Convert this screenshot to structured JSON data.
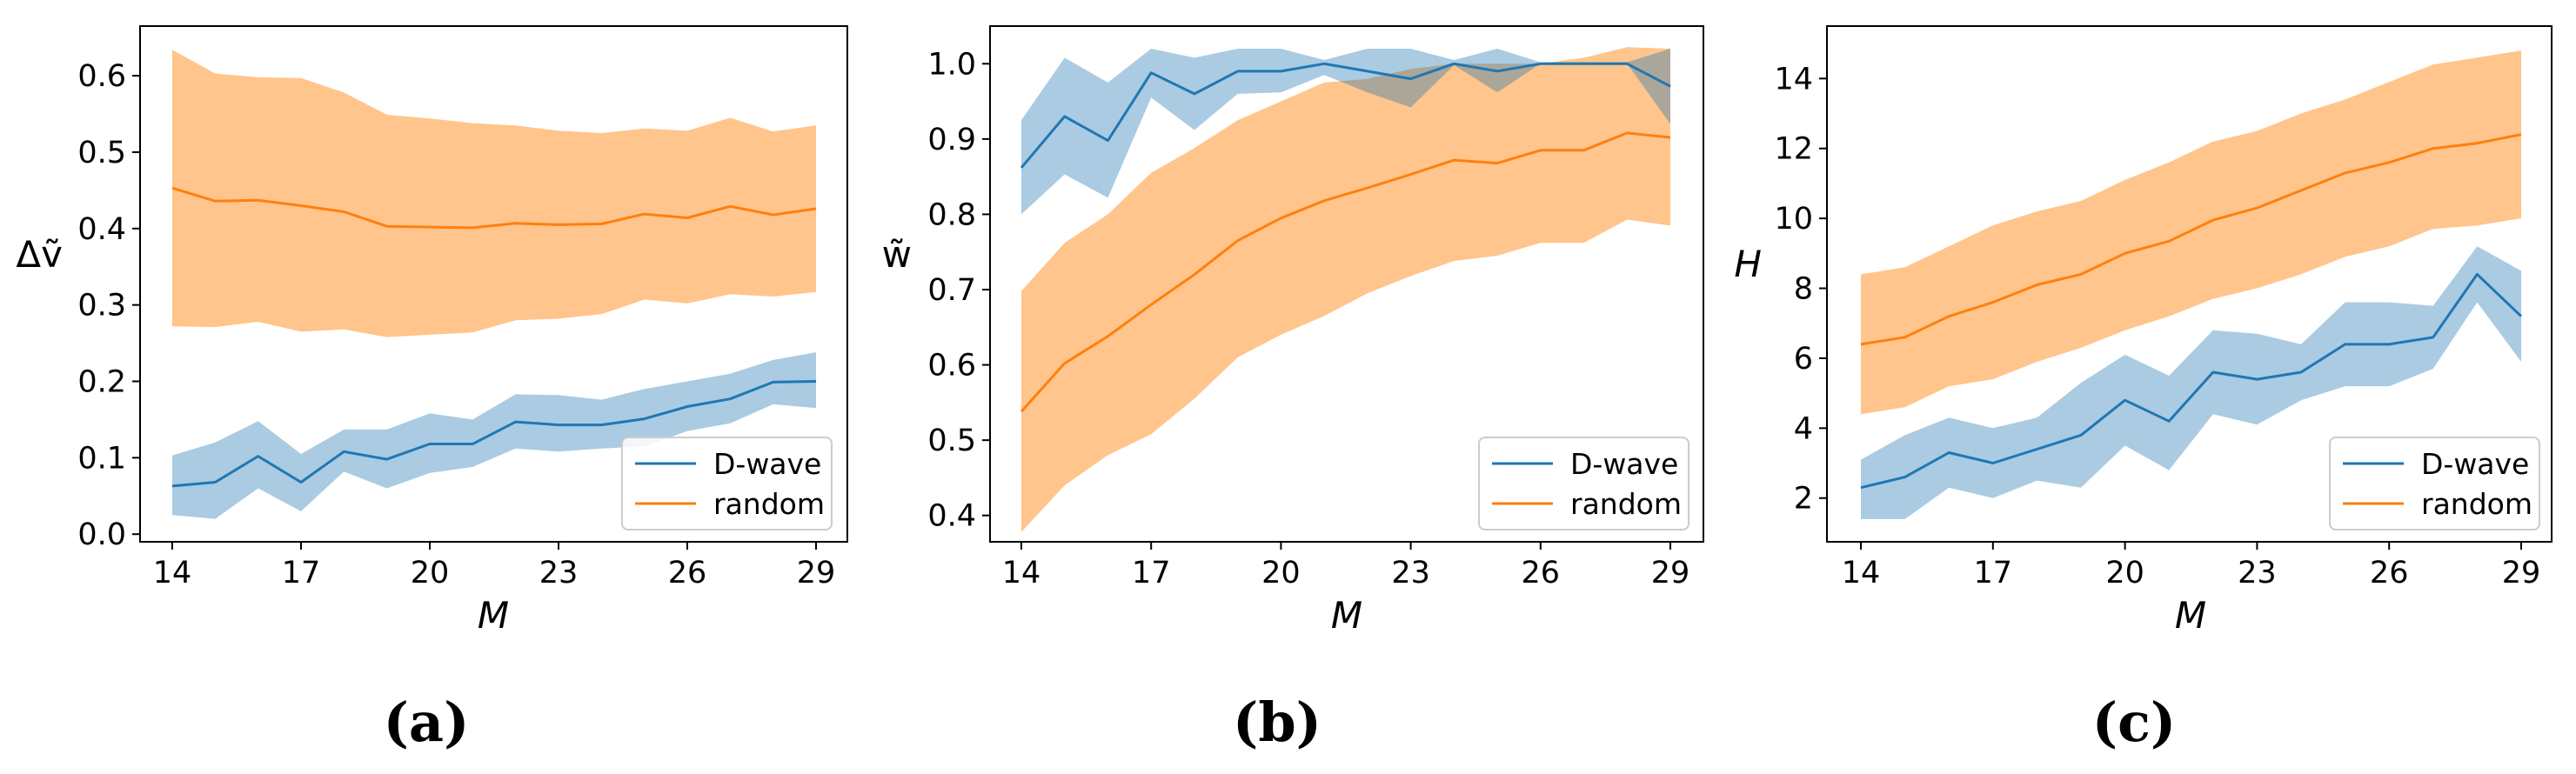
{
  "chart_data": [
    {
      "type": "line",
      "panel": "(a)",
      "xlabel": "M",
      "ylabel": "Δṽ",
      "xlim": [
        14,
        29
      ],
      "ylim": [
        -0.01,
        0.665
      ],
      "xticks": [
        14,
        17,
        20,
        23,
        26,
        29
      ],
      "yticks": [
        0.0,
        0.1,
        0.2,
        0.3,
        0.4,
        0.5,
        0.6
      ],
      "ytick_labels": [
        "0.0",
        "0.1",
        "0.2",
        "0.3",
        "0.4",
        "0.5",
        "0.6"
      ],
      "legend_position": "lower-right",
      "x": [
        14,
        15,
        16,
        17,
        18,
        19,
        20,
        21,
        22,
        23,
        24,
        25,
        26,
        27,
        28,
        29
      ],
      "series": [
        {
          "name": "D-wave",
          "color": "#1f77b4",
          "band_color": "#1f77b4",
          "values": [
            0.063,
            0.068,
            0.102,
            0.068,
            0.108,
            0.098,
            0.118,
            0.118,
            0.147,
            0.143,
            0.143,
            0.151,
            0.167,
            0.177,
            0.199,
            0.2
          ],
          "lower": [
            0.025,
            0.02,
            0.06,
            0.03,
            0.082,
            0.06,
            0.08,
            0.088,
            0.112,
            0.108,
            0.112,
            0.115,
            0.135,
            0.145,
            0.17,
            0.165
          ],
          "upper": [
            0.103,
            0.12,
            0.148,
            0.105,
            0.137,
            0.137,
            0.158,
            0.15,
            0.183,
            0.182,
            0.176,
            0.19,
            0.2,
            0.21,
            0.228,
            0.238
          ]
        },
        {
          "name": "random",
          "color": "#ff7f0e",
          "band_color": "#ffbb78",
          "values": [
            0.453,
            0.436,
            0.437,
            0.43,
            0.422,
            0.403,
            0.402,
            0.401,
            0.407,
            0.405,
            0.406,
            0.419,
            0.414,
            0.429,
            0.418,
            0.426
          ],
          "lower": [
            0.272,
            0.271,
            0.278,
            0.265,
            0.268,
            0.258,
            0.261,
            0.264,
            0.28,
            0.282,
            0.288,
            0.307,
            0.302,
            0.314,
            0.311,
            0.317
          ],
          "upper": [
            0.634,
            0.603,
            0.598,
            0.597,
            0.578,
            0.549,
            0.544,
            0.538,
            0.535,
            0.528,
            0.525,
            0.531,
            0.528,
            0.545,
            0.527,
            0.535
          ]
        }
      ]
    },
    {
      "type": "line",
      "panel": "(b)",
      "xlabel": "M",
      "ylabel": "w̃",
      "xlim": [
        14,
        29
      ],
      "ylim": [
        0.365,
        1.05
      ],
      "xticks": [
        14,
        17,
        20,
        23,
        26,
        29
      ],
      "yticks": [
        0.4,
        0.5,
        0.6,
        0.7,
        0.8,
        0.9,
        1.0
      ],
      "ytick_labels": [
        "0.4",
        "0.5",
        "0.6",
        "0.7",
        "0.8",
        "0.9",
        "1.0"
      ],
      "legend_position": "lower-right",
      "x": [
        14,
        15,
        16,
        17,
        18,
        19,
        20,
        21,
        22,
        23,
        24,
        25,
        26,
        27,
        28,
        29
      ],
      "series": [
        {
          "name": "D-wave",
          "color": "#1f77b4",
          "band_color": "#1f77b4",
          "values": [
            0.862,
            0.93,
            0.898,
            0.988,
            0.96,
            0.99,
            0.99,
            1.0,
            0.99,
            0.98,
            1.0,
            0.99,
            1.0,
            1.0,
            1.0,
            0.97
          ],
          "lower": [
            0.8,
            0.853,
            0.822,
            0.955,
            0.912,
            0.96,
            0.962,
            0.985,
            0.962,
            0.942,
            0.998,
            0.962,
            1.0,
            1.0,
            1.0,
            0.92
          ],
          "upper": [
            0.925,
            1.008,
            0.975,
            1.02,
            1.008,
            1.02,
            1.02,
            1.005,
            1.02,
            1.02,
            1.005,
            1.02,
            1.002,
            1.002,
            1.002,
            1.02
          ]
        },
        {
          "name": "random",
          "color": "#ff7f0e",
          "band_color": "#ffbb78",
          "values": [
            0.538,
            0.602,
            0.638,
            0.68,
            0.72,
            0.765,
            0.795,
            0.818,
            0.835,
            0.853,
            0.872,
            0.868,
            0.885,
            0.885,
            0.908,
            0.902
          ],
          "lower": [
            0.378,
            0.44,
            0.48,
            0.508,
            0.555,
            0.61,
            0.64,
            0.665,
            0.695,
            0.718,
            0.738,
            0.745,
            0.762,
            0.762,
            0.793,
            0.785
          ],
          "upper": [
            0.698,
            0.762,
            0.8,
            0.855,
            0.888,
            0.925,
            0.95,
            0.975,
            0.98,
            0.993,
            1.0,
            1.0,
            1.0,
            1.008,
            1.022,
            1.02
          ]
        }
      ]
    },
    {
      "type": "line",
      "panel": "(c)",
      "xlabel": "M",
      "ylabel": "H",
      "xlim": [
        14,
        29
      ],
      "ylim": [
        0.75,
        15.5
      ],
      "xticks": [
        14,
        17,
        20,
        23,
        26,
        29
      ],
      "yticks": [
        2,
        4,
        6,
        8,
        10,
        12,
        14
      ],
      "ytick_labels": [
        "2",
        "4",
        "6",
        "8",
        "10",
        "12",
        "14"
      ],
      "legend_position": "lower-right",
      "x": [
        14,
        15,
        16,
        17,
        18,
        19,
        20,
        21,
        22,
        23,
        24,
        25,
        26,
        27,
        28,
        29
      ],
      "series": [
        {
          "name": "D-wave",
          "color": "#1f77b4",
          "band_color": "#1f77b4",
          "values": [
            2.3,
            2.6,
            3.3,
            3.0,
            3.4,
            3.8,
            4.8,
            4.2,
            5.6,
            5.4,
            5.6,
            6.4,
            6.4,
            6.6,
            8.4,
            7.2
          ],
          "lower": [
            1.4,
            1.4,
            2.3,
            2.0,
            2.5,
            2.3,
            3.5,
            2.8,
            4.4,
            4.1,
            4.8,
            5.2,
            5.2,
            5.7,
            7.6,
            5.9
          ],
          "upper": [
            3.1,
            3.8,
            4.3,
            4.0,
            4.3,
            5.3,
            6.1,
            5.5,
            6.8,
            6.7,
            6.4,
            7.6,
            7.6,
            7.5,
            9.2,
            8.5
          ]
        },
        {
          "name": "random",
          "color": "#ff7f0e",
          "band_color": "#ffbb78",
          "values": [
            6.4,
            6.6,
            7.2,
            7.6,
            8.1,
            8.4,
            9.0,
            9.35,
            9.95,
            10.3,
            10.8,
            11.3,
            11.6,
            12.0,
            12.15,
            12.4
          ],
          "lower": [
            4.4,
            4.6,
            5.2,
            5.4,
            5.9,
            6.3,
            6.8,
            7.2,
            7.7,
            8.0,
            8.4,
            8.9,
            9.2,
            9.7,
            9.8,
            10.0
          ],
          "upper": [
            8.4,
            8.6,
            9.2,
            9.8,
            10.2,
            10.5,
            11.1,
            11.6,
            12.2,
            12.5,
            13.0,
            13.4,
            13.9,
            14.4,
            14.6,
            14.8
          ]
        }
      ]
    }
  ]
}
